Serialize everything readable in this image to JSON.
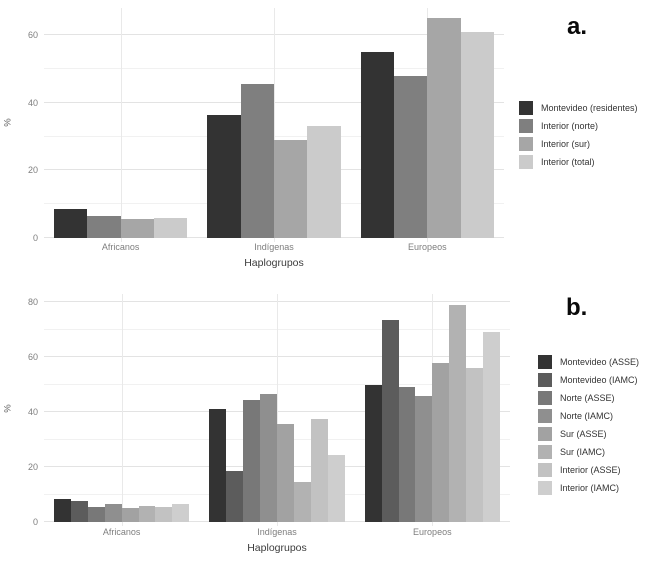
{
  "colors": {
    "grid_major": "#e3e3e3",
    "grid_minor": "#f1f1f1",
    "tick_label": "#7e7e7e",
    "axis_title": "#3d3d3d",
    "background": "#ffffff"
  },
  "chart_data": [
    {
      "id": "a",
      "type": "bar",
      "panel_label": "a.",
      "title": "",
      "xlabel": "Haplogrupos",
      "ylabel": "%",
      "categories": [
        "Africanos",
        "Indígenas",
        "Europeos"
      ],
      "series": [
        {
          "name": "Montevideo (residentes)",
          "color": "#333333",
          "values": [
            8.5,
            36.5,
            55
          ]
        },
        {
          "name": "Interior (norte)",
          "color": "#7f7f7f",
          "values": [
            6.5,
            45.5,
            48
          ]
        },
        {
          "name": "Interior (sur)",
          "color": "#a6a6a6",
          "values": [
            5.5,
            29,
            65
          ]
        },
        {
          "name": "Interior (total)",
          "color": "#cbcbcb",
          "values": [
            6,
            33,
            61
          ]
        }
      ],
      "yticks": [
        0,
        20,
        40,
        60
      ],
      "minor_yticks": [
        10,
        30,
        50
      ],
      "ylim": [
        0,
        68
      ],
      "grid": true,
      "legend_position": "right"
    },
    {
      "id": "b",
      "type": "bar",
      "panel_label": "b.",
      "title": "",
      "xlabel": "Haplogrupos",
      "ylabel": "%",
      "categories": [
        "Africanos",
        "Indígenas",
        "Europeos"
      ],
      "series": [
        {
          "name": "Montevideo (ASSE)",
          "color": "#333333",
          "values": [
            8.5,
            41,
            50
          ]
        },
        {
          "name": "Montevideo (IAMC)",
          "color": "#5c5c5c",
          "values": [
            7.5,
            18.5,
            73.5
          ]
        },
        {
          "name": "Norte (ASSE)",
          "color": "#787878",
          "values": [
            5.5,
            44.5,
            49
          ]
        },
        {
          "name": "Norte (IAMC)",
          "color": "#8f8f8f",
          "values": [
            6.5,
            46.5,
            46
          ]
        },
        {
          "name": "Sur (ASSE)",
          "color": "#a2a2a2",
          "values": [
            5,
            35.5,
            58
          ]
        },
        {
          "name": "Sur (IAMC)",
          "color": "#b2b2b2",
          "values": [
            6,
            14.5,
            79
          ]
        },
        {
          "name": "Interior (ASSE)",
          "color": "#c2c2c2",
          "values": [
            5.5,
            37.5,
            56
          ]
        },
        {
          "name": "Interior (IAMC)",
          "color": "#cecece",
          "values": [
            6.5,
            24.5,
            69
          ]
        }
      ],
      "yticks": [
        0,
        20,
        40,
        60,
        80
      ],
      "minor_yticks": [
        10,
        30,
        50,
        70
      ],
      "ylim": [
        0,
        83
      ],
      "grid": true,
      "legend_position": "right"
    }
  ]
}
